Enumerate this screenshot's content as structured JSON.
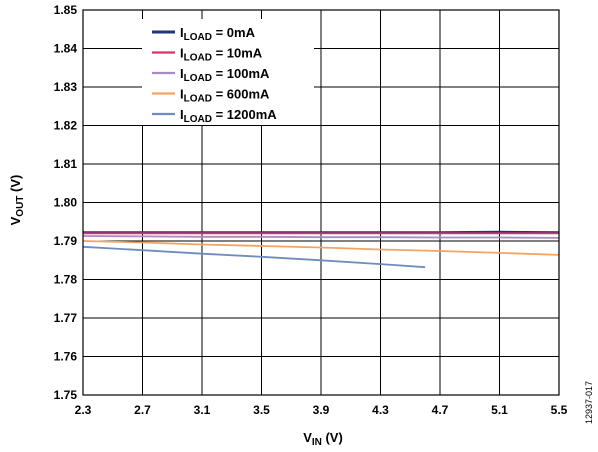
{
  "chart_data": {
    "type": "line",
    "title": "",
    "xlabel": {
      "main": "V",
      "sub": "IN",
      "suffix": " (V)"
    },
    "ylabel": {
      "main": "V",
      "sub": "OUT",
      "suffix": " (V)"
    },
    "xlim": [
      2.3,
      5.5
    ],
    "ylim": [
      1.75,
      1.85
    ],
    "x_ticks": [
      "2.3",
      "2.7",
      "3.1",
      "3.5",
      "3.9",
      "4.3",
      "4.7",
      "5.1",
      "5.5"
    ],
    "y_ticks": [
      "1.75",
      "1.76",
      "1.77",
      "1.78",
      "1.79",
      "1.80",
      "1.81",
      "1.82",
      "1.83",
      "1.84",
      "1.85"
    ],
    "grid": true,
    "legend_position": "top-left",
    "figure_id": "12937-017",
    "series": [
      {
        "label_main": "I",
        "label_sub": "LOAD",
        "label_value": " = 0mA",
        "color": "#1f3577",
        "x": [
          2.3,
          2.7,
          3.1,
          3.5,
          3.9,
          4.3,
          4.7,
          5.1,
          5.5
        ],
        "y": [
          1.7922,
          1.7922,
          1.7922,
          1.7922,
          1.7922,
          1.7922,
          1.7922,
          1.7923,
          1.7922
        ]
      },
      {
        "label_main": "I",
        "label_sub": "LOAD",
        "label_value": " = 10mA",
        "color": "#d6336c",
        "x": [
          2.3,
          2.7,
          3.1,
          3.5,
          3.9,
          4.3,
          4.7,
          5.1,
          5.5
        ],
        "y": [
          1.792,
          1.792,
          1.792,
          1.792,
          1.792,
          1.792,
          1.792,
          1.792,
          1.792
        ]
      },
      {
        "label_main": "I",
        "label_sub": "LOAD",
        "label_value": " = 100mA",
        "color": "#a98bc4",
        "x": [
          2.3,
          2.7,
          3.1,
          3.5,
          3.9,
          4.3,
          4.7,
          5.1,
          5.5
        ],
        "y": [
          1.7913,
          1.7912,
          1.7911,
          1.7911,
          1.791,
          1.791,
          1.7909,
          1.7909,
          1.7908
        ]
      },
      {
        "label_main": "I",
        "label_sub": "LOAD",
        "label_value": " = 600mA",
        "color": "#f5a361",
        "x": [
          2.3,
          2.7,
          3.1,
          3.5,
          3.9,
          4.3,
          4.7,
          5.1,
          5.5
        ],
        "y": [
          1.79,
          1.7896,
          1.7891,
          1.7887,
          1.7883,
          1.7878,
          1.7874,
          1.7869,
          1.7864
        ]
      },
      {
        "label_main": "I",
        "label_sub": "LOAD",
        "label_value": " = 1200mA",
        "color": "#6f8cbf",
        "x": [
          2.3,
          2.7,
          3.1,
          3.5,
          3.9,
          4.3,
          4.6
        ],
        "y": [
          1.7885,
          1.7876,
          1.7867,
          1.7859,
          1.785,
          1.784,
          1.7832
        ]
      }
    ]
  }
}
